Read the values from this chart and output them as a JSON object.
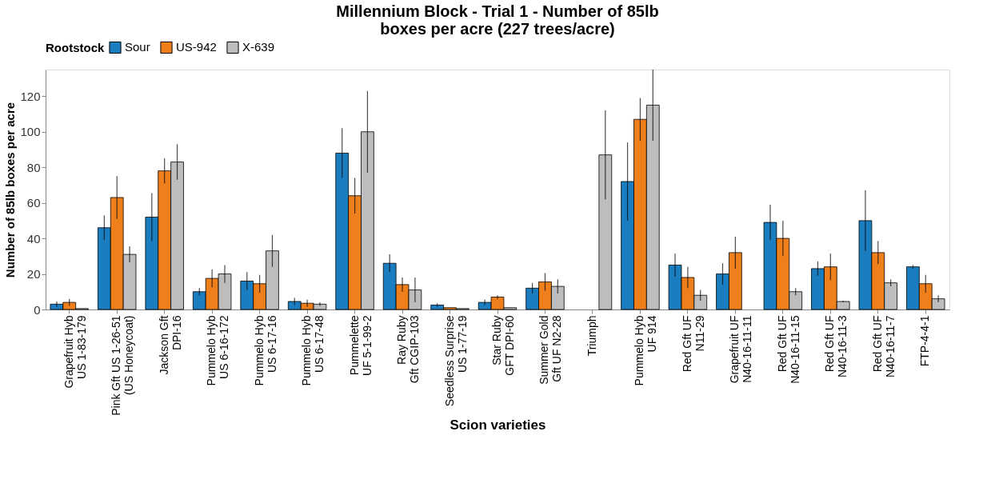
{
  "chart_data": {
    "type": "bar",
    "title": "Millennium Block - Trial 1 - Number of 85lb\nboxes per acre (227 trees/acre)",
    "xlabel": "Scion varieties",
    "ylabel": "Number of 85lb boxes per acre",
    "legend_title": "Rootstock",
    "legend": "top",
    "categories": [
      "Grapefruit Hyb\nUS 1-83-179",
      "Pink Gft US 1-26-51\n(US Honeycoat)",
      "Jackson Gft\nDPI-16",
      "Pummelo Hyb\nUS 6-16-172",
      "Pummelo Hyb\nUS 6-17-16",
      "Pummelo Hyb\nUS 6-17-48",
      "Pummelette\nUF 5-1-99-2",
      "Ray Ruby\nGft CGIP-103",
      "Seedless Surprise\nUS 1-77-19",
      "Star Ruby\nGFT DPI-60",
      "Summer Gold\nGft UF N2-28",
      "Triumph",
      "Pummelo Hyb\nUF 914",
      "Red Gft UF\nN11-29",
      "Grapefruit UF\nN40-16-11-11",
      "Red Gft UF\nN40-16-11-15",
      "Red Gft UF\nN40-16-11-3",
      "Red Gft UF\nN40-16-11-7",
      "FTP-4-4-1"
    ],
    "series": [
      {
        "name": "Sour",
        "color": "#1a7dc0",
        "values": [
          3,
          46,
          52,
          10,
          16,
          4.5,
          88,
          26,
          2.5,
          4,
          12,
          null,
          72,
          25,
          20,
          49,
          23,
          50,
          24
        ],
        "errors": [
          1.5,
          7,
          13.5,
          2,
          5,
          2,
          14,
          5,
          1,
          1.5,
          3,
          null,
          22,
          6.5,
          6,
          10,
          4,
          17,
          1
        ]
      },
      {
        "name": "US-942",
        "color": "#ef7f1a",
        "values": [
          4,
          63,
          78,
          17.5,
          14.5,
          3.5,
          64,
          14,
          1,
          7,
          15.5,
          null,
          107,
          18,
          32,
          40,
          24,
          32,
          14.5
        ],
        "errors": [
          2,
          12,
          7,
          5,
          5,
          2,
          10,
          4,
          null,
          1,
          5,
          null,
          12,
          6,
          9,
          10,
          7.5,
          6.5,
          5
        ]
      },
      {
        "name": "X-639",
        "color": "#bdbdbd",
        "values": [
          0.5,
          31,
          83,
          20,
          33,
          3,
          100,
          11,
          0.5,
          1,
          13,
          87,
          115,
          8,
          null,
          10,
          4.5,
          15,
          6
        ],
        "errors": [
          null,
          4.5,
          10,
          5,
          9,
          1,
          23,
          7,
          null,
          null,
          4,
          25,
          20,
          3,
          null,
          2,
          0.5,
          2,
          2
        ]
      }
    ],
    "ylim": [
      0,
      135
    ],
    "yticks": [
      0,
      20,
      40,
      60,
      80,
      100,
      120
    ],
    "grid": false
  }
}
